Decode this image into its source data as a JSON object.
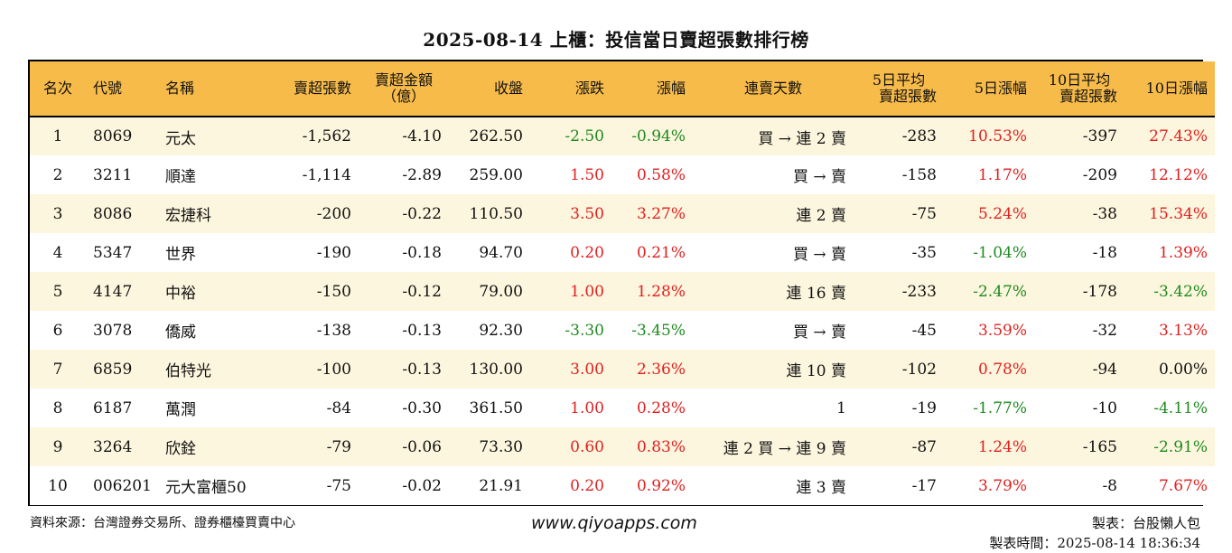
{
  "title": "2025-08-14 上櫃：投信當日賣超張數排行榜",
  "headers": {
    "rank": "名次",
    "code": "代號",
    "name": "名稱",
    "sell_shares": "賣超張數",
    "sell_amount_line1": "賣超金額",
    "sell_amount_line2": "（億）",
    "close": "收盤",
    "change": "漲跌",
    "change_pct": "漲幅",
    "consec_days": "連賣天數",
    "avg5_line1": "5日平均",
    "avg5_line2": "賣超張數",
    "pct5": "5日漲幅",
    "avg10_line1": "10日平均",
    "avg10_line2": "賣超張數",
    "pct10": "10日漲幅"
  },
  "rows": [
    {
      "rank": "1",
      "code": "8069",
      "name": "元太",
      "sell_shares": "-1,562",
      "sell_amount": "-4.10",
      "close": "262.50",
      "change": "-2.50",
      "change_color": "green",
      "change_pct": "-0.94%",
      "change_pct_color": "green",
      "consec_days": "買 → 連 2 賣",
      "avg5": "-283",
      "pct5": "10.53%",
      "pct5_color": "red",
      "avg10": "-397",
      "pct10": "27.43%",
      "pct10_color": "red"
    },
    {
      "rank": "2",
      "code": "3211",
      "name": "順達",
      "sell_shares": "-1,114",
      "sell_amount": "-2.89",
      "close": "259.00",
      "change": "1.50",
      "change_color": "red",
      "change_pct": "0.58%",
      "change_pct_color": "red",
      "consec_days": "買 → 賣",
      "avg5": "-158",
      "pct5": "1.17%",
      "pct5_color": "red",
      "avg10": "-209",
      "pct10": "12.12%",
      "pct10_color": "red"
    },
    {
      "rank": "3",
      "code": "8086",
      "name": "宏捷科",
      "sell_shares": "-200",
      "sell_amount": "-0.22",
      "close": "110.50",
      "change": "3.50",
      "change_color": "red",
      "change_pct": "3.27%",
      "change_pct_color": "red",
      "consec_days": "連 2 賣",
      "avg5": "-75",
      "pct5": "5.24%",
      "pct5_color": "red",
      "avg10": "-38",
      "pct10": "15.34%",
      "pct10_color": "red"
    },
    {
      "rank": "4",
      "code": "5347",
      "name": "世界",
      "sell_shares": "-190",
      "sell_amount": "-0.18",
      "close": "94.70",
      "change": "0.20",
      "change_color": "red",
      "change_pct": "0.21%",
      "change_pct_color": "red",
      "consec_days": "買 → 賣",
      "avg5": "-35",
      "pct5": "-1.04%",
      "pct5_color": "green",
      "avg10": "-18",
      "pct10": "1.39%",
      "pct10_color": "red"
    },
    {
      "rank": "5",
      "code": "4147",
      "name": "中裕",
      "sell_shares": "-150",
      "sell_amount": "-0.12",
      "close": "79.00",
      "change": "1.00",
      "change_color": "red",
      "change_pct": "1.28%",
      "change_pct_color": "red",
      "consec_days": "連 16 賣",
      "avg5": "-233",
      "pct5": "-2.47%",
      "pct5_color": "green",
      "avg10": "-178",
      "pct10": "-3.42%",
      "pct10_color": "green"
    },
    {
      "rank": "6",
      "code": "3078",
      "name": "僑威",
      "sell_shares": "-138",
      "sell_amount": "-0.13",
      "close": "92.30",
      "change": "-3.30",
      "change_color": "green",
      "change_pct": "-3.45%",
      "change_pct_color": "green",
      "consec_days": "買 → 賣",
      "avg5": "-45",
      "pct5": "3.59%",
      "pct5_color": "red",
      "avg10": "-32",
      "pct10": "3.13%",
      "pct10_color": "red"
    },
    {
      "rank": "7",
      "code": "6859",
      "name": "伯特光",
      "sell_shares": "-100",
      "sell_amount": "-0.13",
      "close": "130.00",
      "change": "3.00",
      "change_color": "red",
      "change_pct": "2.36%",
      "change_pct_color": "red",
      "consec_days": "連 10 賣",
      "avg5": "-102",
      "pct5": "0.78%",
      "pct5_color": "red",
      "avg10": "-94",
      "pct10": "0.00%",
      "pct10_color": "black"
    },
    {
      "rank": "8",
      "code": "6187",
      "name": "萬潤",
      "sell_shares": "-84",
      "sell_amount": "-0.30",
      "close": "361.50",
      "change": "1.00",
      "change_color": "red",
      "change_pct": "0.28%",
      "change_pct_color": "red",
      "consec_days": "1",
      "avg5": "-19",
      "pct5": "-1.77%",
      "pct5_color": "green",
      "avg10": "-10",
      "pct10": "-4.11%",
      "pct10_color": "green"
    },
    {
      "rank": "9",
      "code": "3264",
      "name": "欣銓",
      "sell_shares": "-79",
      "sell_amount": "-0.06",
      "close": "73.30",
      "change": "0.60",
      "change_color": "red",
      "change_pct": "0.83%",
      "change_pct_color": "red",
      "consec_days": "連 2 買 → 連 9 賣",
      "avg5": "-87",
      "pct5": "1.24%",
      "pct5_color": "red",
      "avg10": "-165",
      "pct10": "-2.91%",
      "pct10_color": "green"
    },
    {
      "rank": "10",
      "code": "006201",
      "name": "元大富櫃50",
      "sell_shares": "-75",
      "sell_amount": "-0.02",
      "close": "21.91",
      "change": "0.20",
      "change_color": "red",
      "change_pct": "0.92%",
      "change_pct_color": "red",
      "consec_days": "連 3 賣",
      "avg5": "-17",
      "pct5": "3.79%",
      "pct5_color": "red",
      "avg10": "-8",
      "pct10": "7.67%",
      "pct10_color": "red"
    }
  ],
  "footer": {
    "source": "資料來源：台灣證券交易所、證券櫃檯買賣中心",
    "website": "www.qiyoapps.com",
    "author": "製表：台股懶人包",
    "time": "製表時間：2025-08-14 18:36:34"
  }
}
